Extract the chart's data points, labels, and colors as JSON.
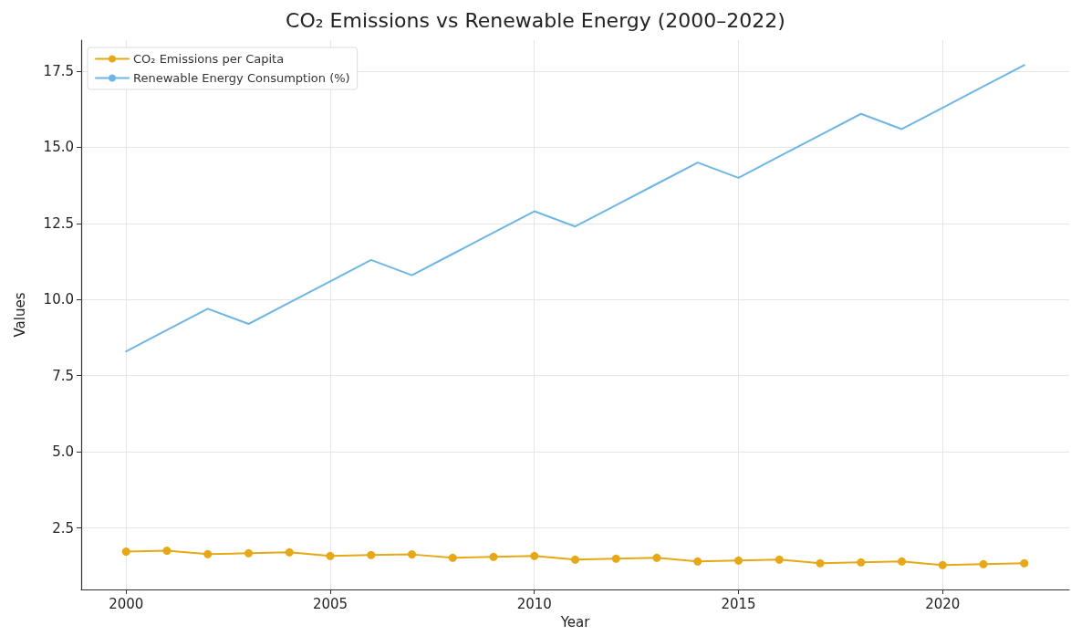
{
  "chart_data": {
    "type": "line",
    "title": "CO₂ Emissions vs Renewable Energy (2000–2022)",
    "xlabel": "Year",
    "ylabel": "Values",
    "x": [
      2000,
      2001,
      2002,
      2003,
      2004,
      2005,
      2006,
      2007,
      2008,
      2009,
      2010,
      2011,
      2012,
      2013,
      2014,
      2015,
      2016,
      2017,
      2018,
      2019,
      2020,
      2021,
      2022
    ],
    "series": [
      {
        "name": "CO₂ Emissions per Capita",
        "color": "#e6a817",
        "marker": "circle",
        "values": [
          1.72,
          1.75,
          1.64,
          1.67,
          1.7,
          1.58,
          1.61,
          1.63,
          1.52,
          1.55,
          1.58,
          1.46,
          1.49,
          1.52,
          1.4,
          1.43,
          1.46,
          1.34,
          1.37,
          1.4,
          1.28,
          1.31,
          1.34
        ]
      },
      {
        "name": "Renewable Energy Consumption (%)",
        "color": "#6fb6e4",
        "marker": "none",
        "values": [
          8.3,
          9.0,
          9.7,
          9.2,
          9.9,
          10.6,
          11.3,
          10.8,
          11.5,
          12.2,
          12.9,
          12.4,
          13.1,
          13.8,
          14.5,
          14.0,
          14.7,
          15.4,
          16.1,
          15.6,
          16.3,
          17.0,
          17.7
        ]
      }
    ],
    "xlim": [
      1998.9,
      2023.1
    ],
    "xticks": [
      2000,
      2005,
      2010,
      2015,
      2020
    ],
    "ylim": [
      0.48,
      18.52
    ],
    "yticks": [
      {
        "value": 2.5,
        "label": "2.5"
      },
      {
        "value": 5,
        "label": "5.0"
      },
      {
        "value": 7.5,
        "label": "7.5"
      },
      {
        "value": 10,
        "label": "10.0"
      },
      {
        "value": 12.5,
        "label": "12.5"
      },
      {
        "value": 15,
        "label": "15.0"
      },
      {
        "value": 17.5,
        "label": "17.5"
      }
    ],
    "grid": true,
    "legend": "top left",
    "line_style": "solid"
  }
}
